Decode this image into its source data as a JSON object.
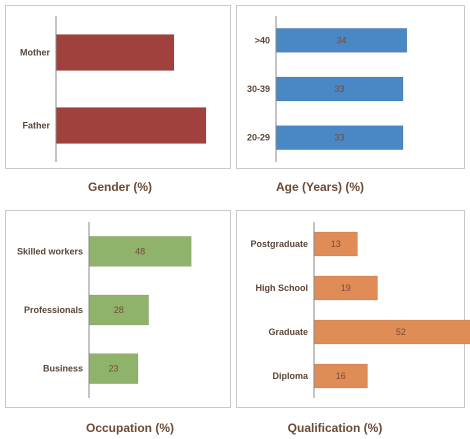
{
  "chart_data": [
    {
      "id": "gender",
      "type": "bar",
      "orientation": "horizontal",
      "caption": "Gender (%)",
      "categories": [
        "Mother",
        "Father"
      ],
      "values": [
        null,
        null
      ],
      "value_labels": [
        "",
        ""
      ],
      "color": "#a0413e",
      "xlim": [
        0,
        60
      ]
    },
    {
      "id": "age",
      "type": "bar",
      "orientation": "horizontal",
      "caption": "Age (Years) (%)",
      "categories": [
        ">40",
        "30-39",
        "20-29"
      ],
      "values": [
        34,
        33,
        33
      ],
      "value_labels": [
        "34",
        "33",
        "33"
      ],
      "color": "#4a87c5",
      "xlim": [
        0,
        100
      ]
    },
    {
      "id": "occupation",
      "type": "bar",
      "orientation": "horizontal",
      "caption": "Occupation (%)",
      "categories": [
        "Skilled workers",
        "Professionals",
        "Business"
      ],
      "values": [
        48,
        28,
        23
      ],
      "value_labels": [
        "48",
        "28",
        "23"
      ],
      "color": "#8fb36a",
      "xlim": [
        0,
        100
      ]
    },
    {
      "id": "qualification",
      "type": "bar",
      "orientation": "horizontal",
      "caption": "Qualification (%)",
      "categories": [
        "Postgraduate",
        "High School",
        "Graduate",
        "Diploma"
      ],
      "values": [
        13,
        19,
        52,
        16
      ],
      "value_labels": [
        "13",
        "19",
        "52",
        "16"
      ],
      "color": "#e08c56",
      "xlim": [
        0,
        70
      ]
    }
  ]
}
